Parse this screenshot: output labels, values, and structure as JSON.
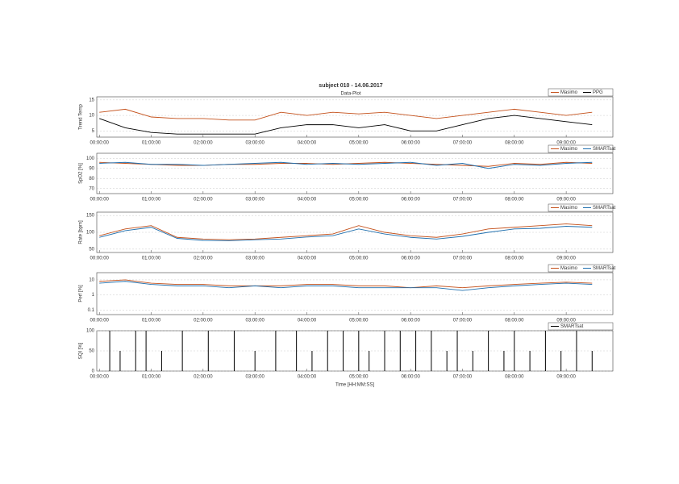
{
  "title": "subject 010 - 14.06.2017",
  "subtitle": "Data-Plot",
  "chart_data": [
    {
      "type": "line",
      "ylabel": "Trend Temp",
      "ylim": [
        3,
        16
      ],
      "yticks": [
        5,
        10,
        15
      ],
      "grid": true,
      "legend": "top-right",
      "xlim": [
        -0.05,
        9.9
      ],
      "xticks": [
        {
          "value": 0,
          "label": "00:00:00"
        },
        {
          "value": 1,
          "label": "01:00:00"
        },
        {
          "value": 2,
          "label": "02:00:00"
        },
        {
          "value": 3,
          "label": "03:00:00"
        },
        {
          "value": 4,
          "label": "04:00:00"
        },
        {
          "value": 5,
          "label": "05:00:00"
        },
        {
          "value": 6,
          "label": "06:00:00"
        },
        {
          "value": 7,
          "label": "07:00:00"
        },
        {
          "value": 8,
          "label": "08:00:00"
        },
        {
          "value": 9,
          "label": "09:00:00"
        }
      ],
      "x": [
        0,
        0.5,
        1,
        1.5,
        2,
        2.5,
        3,
        3.5,
        4,
        4.5,
        5,
        5.5,
        6,
        6.5,
        7,
        7.5,
        8,
        8.5,
        9,
        9.5
      ],
      "series": [
        {
          "name": "Masimo",
          "color": "#c4501a",
          "values": [
            11,
            12,
            9.5,
            9,
            9,
            8.5,
            8.5,
            11,
            10,
            11,
            10.5,
            11,
            10,
            9,
            10,
            11,
            12,
            11,
            10,
            11
          ]
        },
        {
          "name": "PPG",
          "color": "#000000",
          "values": [
            9,
            6,
            4.5,
            4,
            4,
            4,
            4,
            6,
            7,
            7,
            6,
            7,
            5,
            5,
            7,
            9,
            10,
            9,
            8,
            7
          ]
        }
      ]
    },
    {
      "type": "line",
      "ylabel": "SpO2 [%]",
      "ylim": [
        65,
        105
      ],
      "yticks": [
        70,
        80,
        90,
        100
      ],
      "grid": true,
      "legend": "top-right",
      "series": [
        {
          "name": "Masimo",
          "color": "#c4501a",
          "values": [
            96,
            95,
            94,
            93,
            93,
            94,
            94,
            95,
            95,
            94,
            95,
            96,
            95,
            94,
            93,
            92,
            95,
            94,
            96,
            95
          ]
        },
        {
          "name": "SMARTsat",
          "color": "#1f6fae",
          "values": [
            95,
            96,
            94,
            94,
            93,
            94,
            95,
            96,
            94,
            95,
            94,
            95,
            96,
            93,
            95,
            90,
            94,
            93,
            95,
            96
          ]
        }
      ]
    },
    {
      "type": "line",
      "ylabel": "Rate [bpm]",
      "ylim": [
        40,
        160
      ],
      "yticks": [
        50,
        100,
        150
      ],
      "grid": true,
      "legend": "top-right",
      "series": [
        {
          "name": "Masimo",
          "color": "#c4501a",
          "values": [
            90,
            110,
            120,
            85,
            80,
            78,
            80,
            85,
            90,
            95,
            120,
            100,
            90,
            85,
            95,
            110,
            115,
            120,
            125,
            120
          ]
        },
        {
          "name": "SMARTsat",
          "color": "#1f6fae",
          "values": [
            85,
            105,
            115,
            82,
            76,
            75,
            78,
            80,
            86,
            90,
            110,
            95,
            85,
            80,
            88,
            100,
            110,
            112,
            118,
            115
          ]
        }
      ]
    },
    {
      "type": "line",
      "ylabel": "Perf [%]",
      "log": true,
      "ylim": [
        0.05,
        30
      ],
      "yticks": [
        0.1,
        1,
        10
      ],
      "grid": true,
      "legend": "top-right",
      "series": [
        {
          "name": "Masimo",
          "color": "#c4501a",
          "values": [
            8,
            10,
            6,
            5,
            5,
            4,
            4,
            4,
            5,
            5,
            4,
            4,
            3,
            4,
            3,
            4,
            5,
            6,
            7,
            6
          ]
        },
        {
          "name": "SMARTsat",
          "color": "#1f6fae",
          "values": [
            6,
            8,
            5,
            4,
            4,
            3,
            4,
            3,
            4,
            4,
            3,
            3,
            3,
            3,
            2,
            3,
            4,
            5,
            6,
            5
          ]
        }
      ]
    },
    {
      "type": "stem",
      "ylabel": "SQI [%]",
      "ylim": [
        0,
        100
      ],
      "yticks": [
        0,
        50,
        100
      ],
      "grid": true,
      "legend": "top-right",
      "xlabel": "Time [HH:MM:SS]",
      "x": [
        0.2,
        0.4,
        0.7,
        0.9,
        1.2,
        1.6,
        2.1,
        2.6,
        3.0,
        3.4,
        3.8,
        4.1,
        4.4,
        4.7,
        5.0,
        5.2,
        5.5,
        5.8,
        6.1,
        6.4,
        6.7,
        6.9,
        7.2,
        7.5,
        7.8,
        8.0,
        8.3,
        8.6,
        8.9,
        9.2,
        9.5
      ],
      "series": [
        {
          "name": "SMARTsat",
          "color": "#000000",
          "values": [
            100,
            50,
            100,
            100,
            50,
            100,
            100,
            100,
            50,
            100,
            100,
            50,
            100,
            100,
            100,
            50,
            100,
            100,
            100,
            100,
            50,
            100,
            50,
            100,
            50,
            100,
            50,
            100,
            50,
            100,
            50
          ]
        }
      ]
    }
  ]
}
